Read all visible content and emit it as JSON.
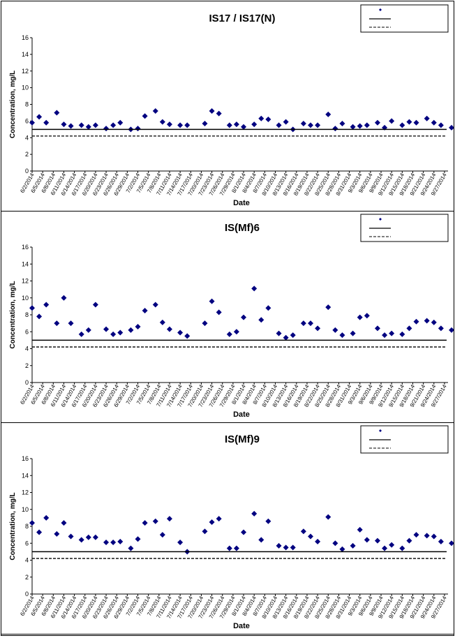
{
  "chart_data": [
    {
      "type": "scatter",
      "title": "IS17 / IS17(N)",
      "xlabel": "Date",
      "ylabel": "Concentration, mg/L",
      "ylim": [
        0,
        16
      ],
      "yticks": [
        0,
        2,
        4,
        6,
        8,
        10,
        12,
        14,
        16
      ],
      "grid": false,
      "legend_position": "top-right",
      "x_ticks": [
        "6/2/2014",
        "6/5/2014",
        "6/8/2014",
        "6/11/2014",
        "6/14/2014",
        "6/17/2014",
        "6/20/2014",
        "6/23/2014",
        "6/26/2014",
        "6/29/2014",
        "7/2/2014",
        "7/5/2014",
        "7/8/2014",
        "7/11/2014",
        "7/14/2014",
        "7/17/2014",
        "7/20/2014",
        "7/23/2014",
        "7/26/2014",
        "7/29/2014",
        "8/1/2014",
        "8/4/2014",
        "8/7/2014",
        "8/10/2014",
        "8/13/2014",
        "8/16/2014",
        "8/19/2014",
        "8/22/2014",
        "8/25/2014",
        "8/28/2014",
        "8/31/2014",
        "9/3/2014",
        "9/6/2014",
        "9/9/2014",
        "9/12/2014",
        "9/15/2014",
        "9/18/2014",
        "9/21/2014",
        "9/24/2014",
        "9/27/2014"
      ],
      "series": [
        {
          "marker": "diamond",
          "color": "#000080",
          "x": [
            "2014-06-02",
            "2014-06-04",
            "2014-06-06",
            "2014-06-09",
            "2014-06-11",
            "2014-06-13",
            "2014-06-16",
            "2014-06-18",
            "2014-06-20",
            "2014-06-23",
            "2014-06-25",
            "2014-06-27",
            "2014-06-30",
            "2014-07-02",
            "2014-07-04",
            "2014-07-07",
            "2014-07-09",
            "2014-07-11",
            "2014-07-14",
            "2014-07-16",
            "2014-07-21",
            "2014-07-23",
            "2014-07-25",
            "2014-07-28",
            "2014-07-30",
            "2014-08-01",
            "2014-08-04",
            "2014-08-06",
            "2014-08-08",
            "2014-08-11",
            "2014-08-13",
            "2014-08-15",
            "2014-08-18",
            "2014-08-20",
            "2014-08-22",
            "2014-08-25",
            "2014-08-27",
            "2014-08-29",
            "2014-09-01",
            "2014-09-03",
            "2014-09-05",
            "2014-09-08",
            "2014-09-10",
            "2014-09-12",
            "2014-09-15",
            "2014-09-17",
            "2014-09-19",
            "2014-09-22",
            "2014-09-24",
            "2014-09-26",
            "2014-09-29"
          ],
          "y": [
            5.8,
            6.5,
            5.8,
            7.0,
            5.6,
            5.4,
            5.5,
            5.3,
            5.5,
            5.1,
            5.5,
            5.8,
            5.0,
            5.1,
            6.6,
            7.2,
            5.9,
            5.6,
            5.5,
            5.5,
            5.7,
            7.2,
            6.9,
            5.5,
            5.6,
            5.3,
            5.6,
            6.3,
            6.2,
            5.5,
            5.9,
            5.0,
            5.7,
            5.5,
            5.5,
            6.8,
            5.1,
            5.7,
            5.3,
            5.4,
            5.5,
            5.8,
            5.2,
            6.0,
            5.5,
            5.9,
            5.8,
            6.3,
            5.8,
            5.5,
            5.2
          ]
        },
        {
          "line": "solid",
          "y": 5.0
        },
        {
          "line": "dashed",
          "y": 4.2
        }
      ]
    },
    {
      "type": "scatter",
      "title": "IS(Mf)6",
      "xlabel": "Date",
      "ylabel": "Concentration, mg/L",
      "ylim": [
        0,
        16
      ],
      "yticks": [
        0,
        2,
        4,
        6,
        8,
        10,
        12,
        14,
        16
      ],
      "grid": false,
      "legend_position": "top-right",
      "x_ticks": [
        "6/2/2014",
        "6/5/2014",
        "6/8/2014",
        "6/11/2014",
        "6/14/2014",
        "6/17/2014",
        "6/20/2014",
        "6/23/2014",
        "6/26/2014",
        "6/29/2014",
        "7/2/2014",
        "7/5/2014",
        "7/8/2014",
        "7/11/2014",
        "7/14/2014",
        "7/17/2014",
        "7/20/2014",
        "7/23/2014",
        "7/26/2014",
        "7/29/2014",
        "8/1/2014",
        "8/4/2014",
        "8/7/2014",
        "8/10/2014",
        "8/13/2014",
        "8/16/2014",
        "8/19/2014",
        "8/22/2014",
        "8/25/2014",
        "8/28/2014",
        "8/31/2014",
        "9/3/2014",
        "9/6/2014",
        "9/9/2014",
        "9/12/2014",
        "9/15/2014",
        "9/18/2014",
        "9/21/2014",
        "9/24/2014",
        "9/27/2014"
      ],
      "series": [
        {
          "marker": "diamond",
          "color": "#000080",
          "x": [
            "2014-06-02",
            "2014-06-04",
            "2014-06-06",
            "2014-06-09",
            "2014-06-11",
            "2014-06-13",
            "2014-06-16",
            "2014-06-18",
            "2014-06-20",
            "2014-06-23",
            "2014-06-25",
            "2014-06-27",
            "2014-06-30",
            "2014-07-02",
            "2014-07-04",
            "2014-07-07",
            "2014-07-09",
            "2014-07-11",
            "2014-07-14",
            "2014-07-16",
            "2014-07-21",
            "2014-07-23",
            "2014-07-25",
            "2014-07-28",
            "2014-07-30",
            "2014-08-01",
            "2014-08-04",
            "2014-08-06",
            "2014-08-08",
            "2014-08-11",
            "2014-08-13",
            "2014-08-15",
            "2014-08-18",
            "2014-08-20",
            "2014-08-22",
            "2014-08-25",
            "2014-08-27",
            "2014-08-29",
            "2014-09-01",
            "2014-09-03",
            "2014-09-05",
            "2014-09-08",
            "2014-09-10",
            "2014-09-12",
            "2014-09-15",
            "2014-09-17",
            "2014-09-19",
            "2014-09-22",
            "2014-09-24",
            "2014-09-26",
            "2014-09-29"
          ],
          "y": [
            8.8,
            7.8,
            9.2,
            7.0,
            10.0,
            7.0,
            5.7,
            6.2,
            9.2,
            6.3,
            5.7,
            5.9,
            6.2,
            6.6,
            8.5,
            9.2,
            7.1,
            6.3,
            5.9,
            5.5,
            7.0,
            9.6,
            8.3,
            5.7,
            6.0,
            7.7,
            11.1,
            7.4,
            8.8,
            5.8,
            5.3,
            5.6,
            7.0,
            7.0,
            6.4,
            8.9,
            6.2,
            5.6,
            5.8,
            7.7,
            7.9,
            6.4,
            5.6,
            5.8,
            5.7,
            6.4,
            7.2,
            7.3,
            7.1,
            6.4,
            6.2
          ]
        },
        {
          "line": "solid",
          "y": 5.0
        },
        {
          "line": "dashed",
          "y": 4.2
        }
      ]
    },
    {
      "type": "scatter",
      "title": "IS(Mf)9",
      "xlabel": "Date",
      "ylabel": "Concentration, mg/L",
      "ylim": [
        0,
        16
      ],
      "yticks": [
        0,
        2,
        4,
        6,
        8,
        10,
        12,
        14,
        16
      ],
      "grid": false,
      "legend_position": "top-right",
      "x_ticks": [
        "6/2/2014",
        "6/5/2014",
        "6/8/2014",
        "6/11/2014",
        "6/14/2014",
        "6/17/2014",
        "6/20/2014",
        "6/23/2014",
        "6/26/2014",
        "6/29/2014",
        "7/2/2014",
        "7/5/2014",
        "7/8/2014",
        "7/11/2014",
        "7/14/2014",
        "7/17/2014",
        "7/20/2014",
        "7/23/2014",
        "7/26/2014",
        "7/29/2014",
        "8/1/2014",
        "8/4/2014",
        "8/7/2014",
        "8/10/2014",
        "8/13/2014",
        "8/16/2014",
        "8/19/2014",
        "8/22/2014",
        "8/25/2014",
        "8/28/2014",
        "8/31/2014",
        "9/3/2014",
        "9/6/2014",
        "9/9/2014",
        "9/12/2014",
        "9/15/2014",
        "9/18/2014",
        "9/21/2014",
        "9/24/2014",
        "9/27/2014"
      ],
      "series": [
        {
          "marker": "diamond",
          "color": "#000080",
          "x": [
            "2014-06-02",
            "2014-06-04",
            "2014-06-06",
            "2014-06-09",
            "2014-06-11",
            "2014-06-13",
            "2014-06-16",
            "2014-06-18",
            "2014-06-20",
            "2014-06-23",
            "2014-06-25",
            "2014-06-27",
            "2014-06-30",
            "2014-07-02",
            "2014-07-04",
            "2014-07-07",
            "2014-07-09",
            "2014-07-11",
            "2014-07-14",
            "2014-07-16",
            "2014-07-21",
            "2014-07-23",
            "2014-07-25",
            "2014-07-28",
            "2014-07-30",
            "2014-08-01",
            "2014-08-04",
            "2014-08-06",
            "2014-08-08",
            "2014-08-11",
            "2014-08-13",
            "2014-08-15",
            "2014-08-18",
            "2014-08-20",
            "2014-08-22",
            "2014-08-25",
            "2014-08-27",
            "2014-08-29",
            "2014-09-01",
            "2014-09-03",
            "2014-09-05",
            "2014-09-08",
            "2014-09-10",
            "2014-09-12",
            "2014-09-15",
            "2014-09-17",
            "2014-09-19",
            "2014-09-22",
            "2014-09-24",
            "2014-09-26",
            "2014-09-29"
          ],
          "y": [
            8.4,
            7.3,
            9.0,
            7.1,
            8.4,
            6.8,
            6.4,
            6.7,
            6.7,
            6.1,
            6.1,
            6.2,
            5.4,
            6.5,
            8.4,
            8.6,
            7.0,
            8.9,
            6.1,
            5.0,
            7.4,
            8.5,
            8.9,
            5.4,
            5.4,
            7.3,
            9.5,
            6.4,
            8.6,
            5.7,
            5.5,
            5.5,
            7.4,
            6.8,
            6.2,
            9.1,
            6.0,
            5.3,
            5.7,
            7.6,
            6.4,
            6.3,
            5.4,
            5.8,
            5.4,
            6.3,
            7.0,
            6.9,
            6.8,
            6.2,
            6.0
          ]
        },
        {
          "line": "solid",
          "y": 5.0
        },
        {
          "line": "dashed",
          "y": 4.2
        }
      ]
    }
  ]
}
